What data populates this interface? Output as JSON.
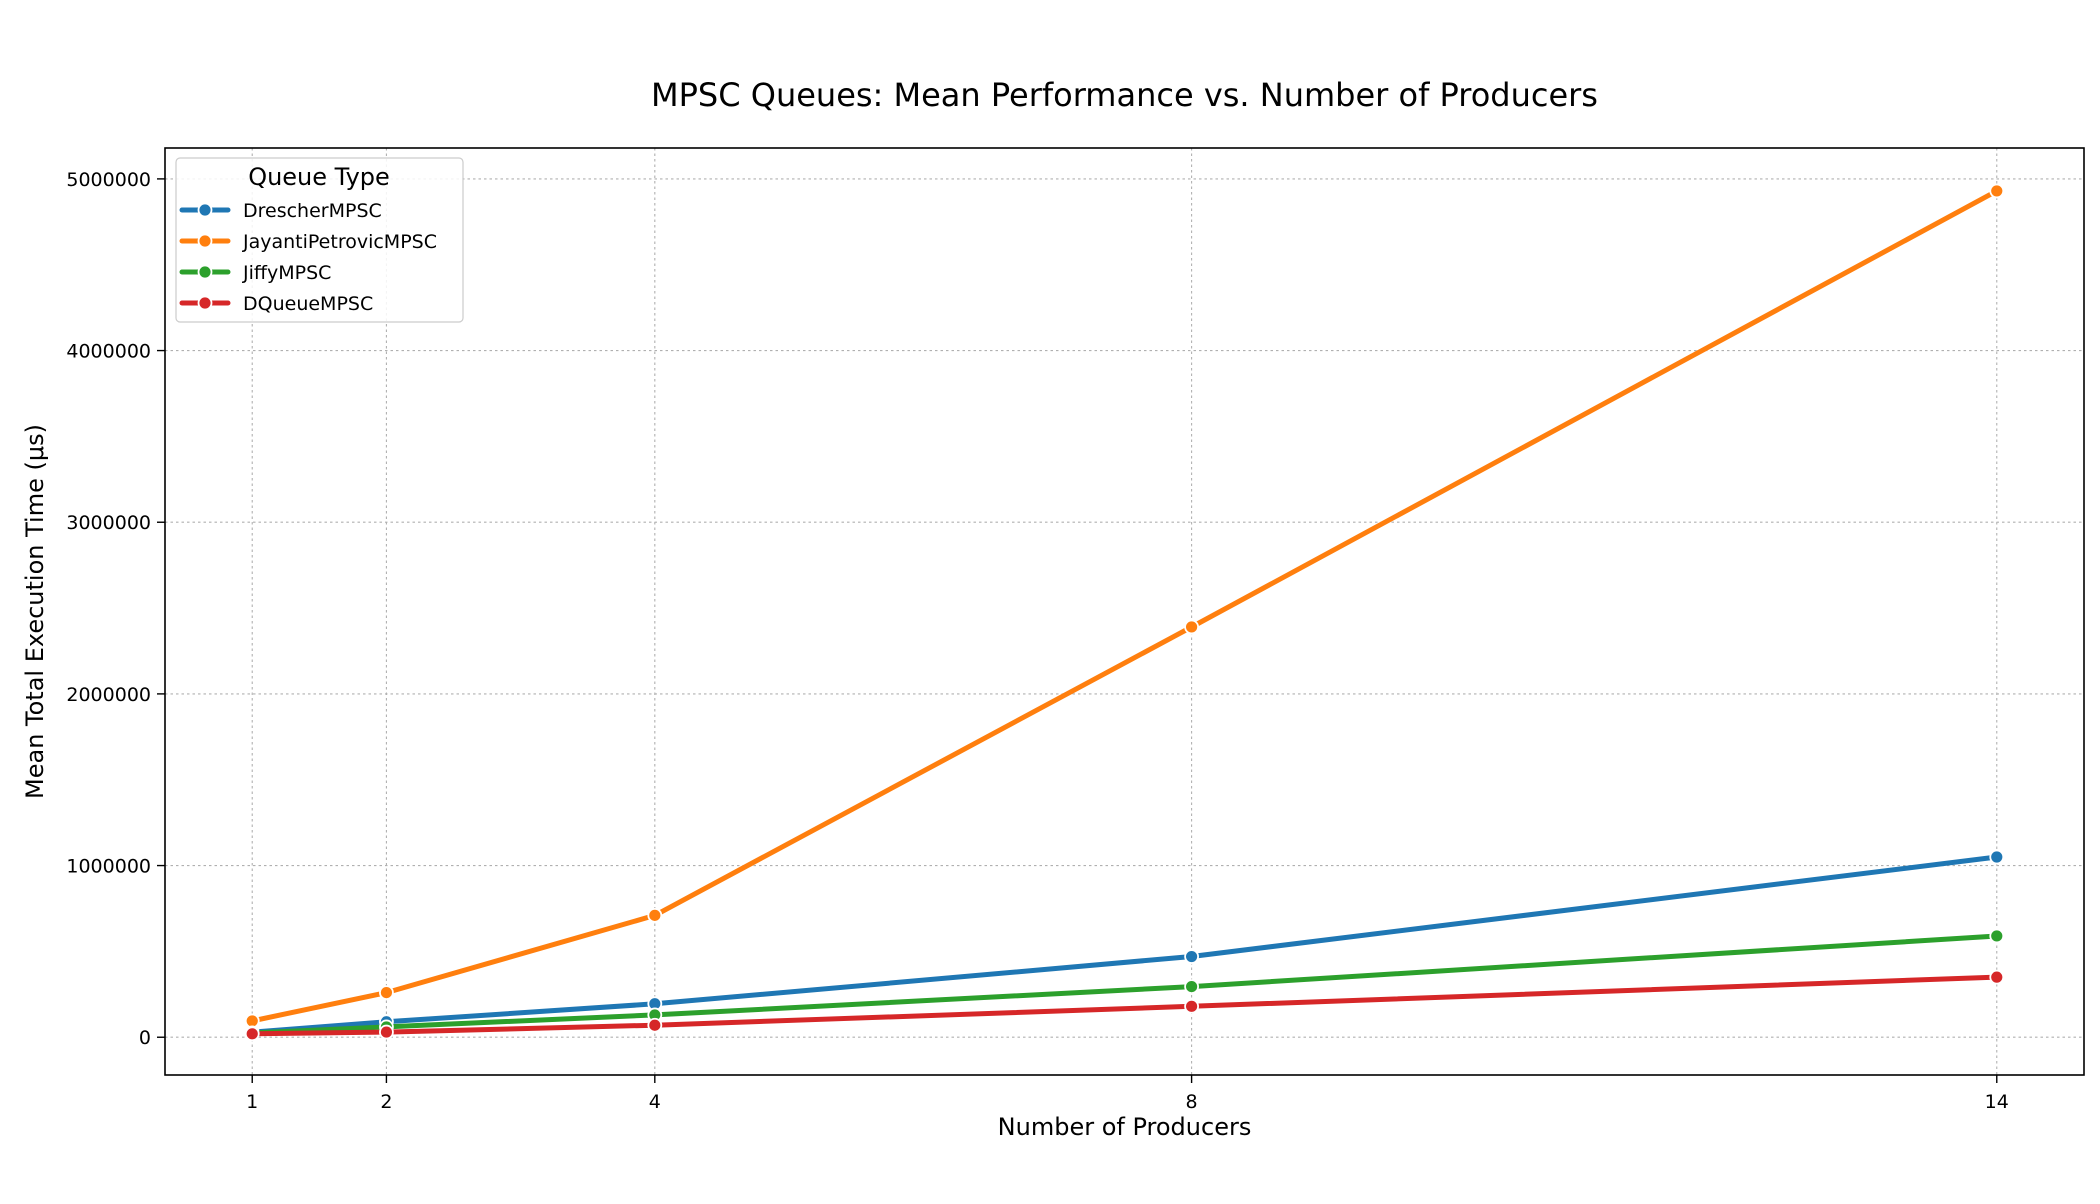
{
  "chart_data": {
    "type": "line",
    "title": "MPSC Queues: Mean Performance vs. Number of Producers",
    "xlabel": "Number of Producers",
    "ylabel": "Mean Total Execution Time (μs)",
    "x": [
      1,
      2,
      4,
      8,
      14
    ],
    "xticks": [
      "1",
      "2",
      "4",
      "8",
      "14"
    ],
    "yticks": [
      "0",
      "1000000",
      "2000000",
      "3000000",
      "4000000",
      "5000000"
    ],
    "xlim": [
      0.35,
      14.65
    ],
    "ylim": [
      -220000,
      5180000
    ],
    "grid": true,
    "legend": {
      "title": "Queue Type",
      "position": "top-left"
    },
    "series": [
      {
        "name": "DrescherMPSC",
        "color": "#1f77b4",
        "values": [
          30000,
          90000,
          195000,
          470000,
          1050000
        ]
      },
      {
        "name": "JayantiPetrovicMPSC",
        "color": "#ff7f0e",
        "values": [
          95000,
          260000,
          710000,
          2390000,
          4930000
        ]
      },
      {
        "name": "JiffyMPSC",
        "color": "#2ca02c",
        "values": [
          25000,
          60000,
          130000,
          295000,
          590000
        ]
      },
      {
        "name": "DQueueMPSC",
        "color": "#d62728",
        "values": [
          20000,
          30000,
          70000,
          180000,
          350000
        ]
      }
    ]
  }
}
